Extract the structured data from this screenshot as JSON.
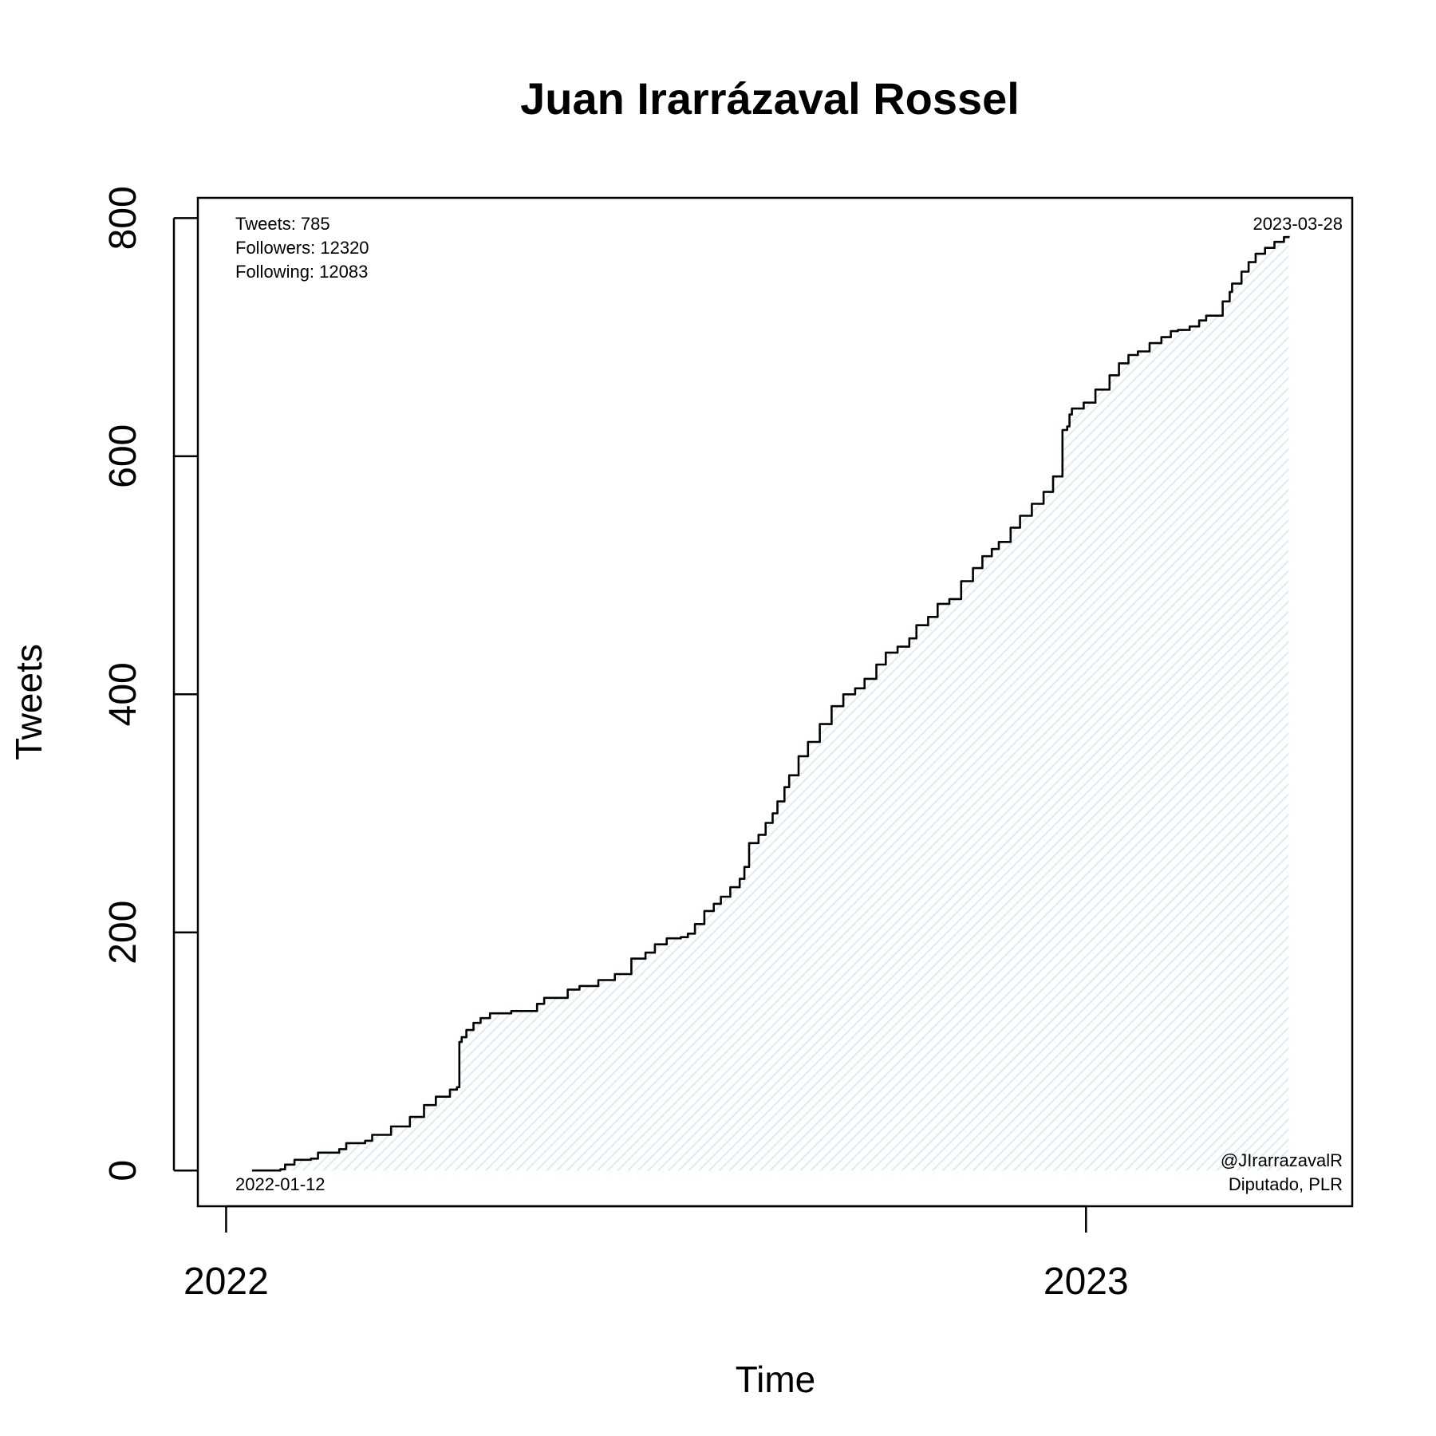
{
  "chart_data": {
    "type": "line",
    "title": "Juan Irarrázaval Rossel",
    "xlabel": "Time",
    "ylabel": "Tweets",
    "x_ticks": [
      "2022",
      "2023"
    ],
    "y_ticks": [
      0,
      200,
      400,
      600,
      800
    ],
    "ylim": [
      -30,
      817
    ],
    "xlim": [
      "2021-12-20",
      "2023-04-24"
    ],
    "grid": false,
    "fill": "light blue diagonal hatching under the line",
    "colors": {
      "line": "#000000",
      "fill": "#dcecf3",
      "frame": "#000000"
    },
    "stats": {
      "tweets": "Tweets: 785",
      "followers": "Followers: 12320",
      "following": "Following: 12083"
    },
    "start_date_label": "2022-01-12",
    "end_date_label": "2023-03-28",
    "handle": "@JIrarrazavalR",
    "role": "Diputado, PLR",
    "series": [
      {
        "x": [
          "2022-01-12",
          "2022-01-24",
          "2022-01-26",
          "2022-01-30",
          "2022-02-06",
          "2022-02-09",
          "2022-02-18",
          "2022-02-21",
          "2022-03-01",
          "2022-03-04",
          "2022-03-12",
          "2022-03-20",
          "2022-03-26",
          "2022-03-31",
          "2022-04-06",
          "2022-04-09",
          "2022-04-10",
          "2022-04-11",
          "2022-04-13",
          "2022-04-16",
          "2022-04-19",
          "2022-04-23",
          "2022-05-02",
          "2022-05-13",
          "2022-05-16",
          "2022-05-26",
          "2022-05-31",
          "2022-06-08",
          "2022-06-15",
          "2022-06-22",
          "2022-06-28",
          "2022-07-02",
          "2022-07-07",
          "2022-07-13",
          "2022-07-16",
          "2022-07-19",
          "2022-07-23",
          "2022-07-27",
          "2022-07-30",
          "2022-08-03",
          "2022-08-07",
          "2022-08-09",
          "2022-08-11",
          "2022-08-15",
          "2022-08-18",
          "2022-08-21",
          "2022-08-23",
          "2022-08-26",
          "2022-08-28",
          "2022-09-01",
          "2022-09-05",
          "2022-09-10",
          "2022-09-15",
          "2022-09-20",
          "2022-09-25",
          "2022-09-29",
          "2022-10-04",
          "2022-10-08",
          "2022-10-13",
          "2022-10-18",
          "2022-10-21",
          "2022-10-26",
          "2022-10-30",
          "2022-11-04",
          "2022-11-09",
          "2022-11-14",
          "2022-11-18",
          "2022-11-22",
          "2022-11-25",
          "2022-11-30",
          "2022-12-04",
          "2022-12-09",
          "2022-12-14",
          "2022-12-18",
          "2022-12-22",
          "2022-12-24",
          "2022-12-25",
          "2022-12-26",
          "2022-12-31",
          "2023-01-05",
          "2023-01-11",
          "2023-01-15",
          "2023-01-19",
          "2023-01-23",
          "2023-01-28",
          "2023-02-02",
          "2023-02-06",
          "2023-02-09",
          "2023-02-14",
          "2023-02-18",
          "2023-02-21",
          "2023-02-28",
          "2023-03-03",
          "2023-03-04",
          "2023-03-08",
          "2023-03-11",
          "2023-03-14",
          "2023-03-18",
          "2023-03-22",
          "2023-03-26",
          "2023-03-28"
        ],
        "y": [
          0,
          1,
          5,
          9,
          10,
          15,
          18,
          23,
          25,
          30,
          37,
          45,
          55,
          62,
          68,
          70,
          108,
          112,
          118,
          124,
          128,
          132,
          134,
          140,
          145,
          152,
          155,
          160,
          165,
          178,
          183,
          190,
          195,
          196,
          199,
          207,
          218,
          224,
          230,
          238,
          245,
          255,
          275,
          282,
          292,
          300,
          310,
          322,
          332,
          348,
          360,
          375,
          390,
          400,
          405,
          413,
          425,
          435,
          440,
          447,
          458,
          465,
          476,
          480,
          495,
          506,
          516,
          522,
          528,
          540,
          550,
          560,
          570,
          583,
          622,
          625,
          635,
          640,
          645,
          656,
          668,
          678,
          685,
          688,
          695,
          700,
          705,
          706,
          709,
          714,
          718,
          730,
          738,
          745,
          755,
          763,
          770,
          775,
          780,
          784,
          785
        ]
      }
    ]
  }
}
